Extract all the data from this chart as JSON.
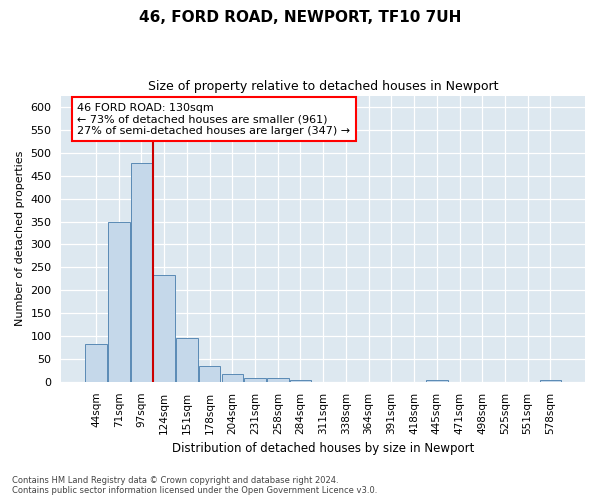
{
  "title1": "46, FORD ROAD, NEWPORT, TF10 7UH",
  "title2": "Size of property relative to detached houses in Newport",
  "xlabel": "Distribution of detached houses by size in Newport",
  "ylabel": "Number of detached properties",
  "categories": [
    "44sqm",
    "71sqm",
    "97sqm",
    "124sqm",
    "151sqm",
    "178sqm",
    "204sqm",
    "231sqm",
    "258sqm",
    "284sqm",
    "311sqm",
    "338sqm",
    "364sqm",
    "391sqm",
    "418sqm",
    "445sqm",
    "471sqm",
    "498sqm",
    "525sqm",
    "551sqm",
    "578sqm"
  ],
  "values": [
    82,
    350,
    478,
    234,
    95,
    35,
    17,
    8,
    8,
    5,
    0,
    0,
    0,
    0,
    0,
    5,
    0,
    0,
    0,
    0,
    5
  ],
  "bar_color": "#c5d8ea",
  "bar_edge_color": "#5a8ab5",
  "highlight_line_color": "#cc0000",
  "annotation_text": "46 FORD ROAD: 130sqm\n← 73% of detached houses are smaller (961)\n27% of semi-detached houses are larger (347) →",
  "ylim_max": 625,
  "yticks": [
    0,
    50,
    100,
    150,
    200,
    250,
    300,
    350,
    400,
    450,
    500,
    550,
    600
  ],
  "footer1": "Contains HM Land Registry data © Crown copyright and database right 2024.",
  "footer2": "Contains public sector information licensed under the Open Government Licence v3.0.",
  "bg_color": "#ffffff",
  "plot_bg_color": "#dde8f0"
}
